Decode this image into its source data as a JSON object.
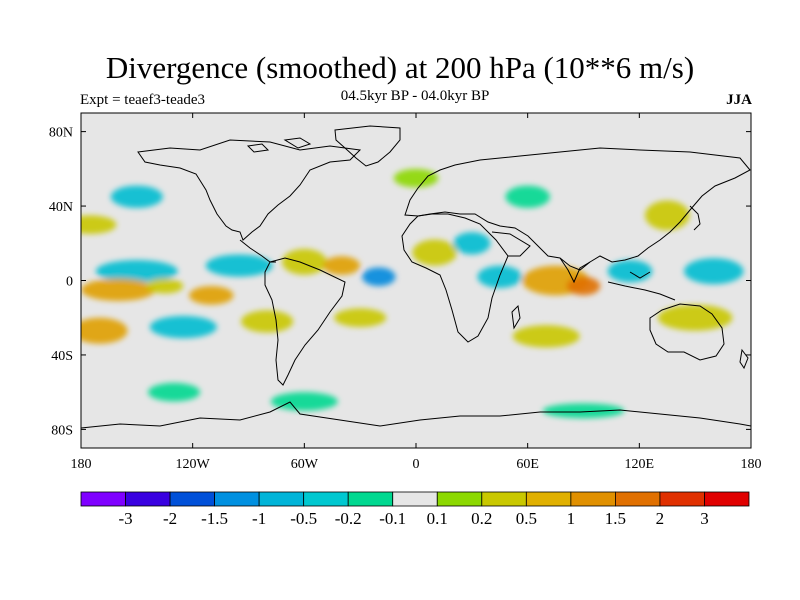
{
  "title": "Divergence (smoothed) at 200 hPa (10**6 m/s)",
  "subtitle_left": "Expt = teaef3-teade3",
  "subtitle_center": "04.5kyr BP - 04.0kyr BP",
  "subtitle_right": "JJA",
  "map": {
    "projection": "cylindrical equidistant",
    "lon_range": [
      -180,
      180
    ],
    "lat_range": [
      -90,
      90
    ],
    "lon_ticks": [
      {
        "value": -180,
        "label": "180"
      },
      {
        "value": -120,
        "label": "120W"
      },
      {
        "value": -60,
        "label": "60W"
      },
      {
        "value": 0,
        "label": "0"
      },
      {
        "value": 60,
        "label": "60E"
      },
      {
        "value": 120,
        "label": "120E"
      },
      {
        "value": 180,
        "label": "180"
      }
    ],
    "lat_ticks": [
      {
        "value": 80,
        "label": "80N"
      },
      {
        "value": 40,
        "label": "40N"
      },
      {
        "value": 0,
        "label": "0"
      },
      {
        "value": -40,
        "label": "40S"
      },
      {
        "value": -80,
        "label": "80S"
      }
    ],
    "background_color": "#e6e6e6",
    "field_blobs": [
      {
        "lon": -150,
        "lat": 5,
        "rlon": 22,
        "rlat": 6,
        "color": "#00bcd0"
      },
      {
        "lon": -95,
        "lat": 8,
        "rlon": 18,
        "rlat": 6,
        "color": "#00bcd0"
      },
      {
        "lon": -60,
        "lat": 10,
        "rlon": 12,
        "rlat": 7,
        "color": "#c9c800"
      },
      {
        "lon": -40,
        "lat": 8,
        "rlon": 10,
        "rlat": 5,
        "color": "#e0a000"
      },
      {
        "lon": -20,
        "lat": 2,
        "rlon": 9,
        "rlat": 5,
        "color": "#0088dd"
      },
      {
        "lon": -160,
        "lat": -5,
        "rlon": 20,
        "rlat": 6,
        "color": "#e0a000"
      },
      {
        "lon": -135,
        "lat": -3,
        "rlon": 10,
        "rlat": 4,
        "color": "#c9c800"
      },
      {
        "lon": -110,
        "lat": -8,
        "rlon": 12,
        "rlat": 5,
        "color": "#e0a000"
      },
      {
        "lon": -170,
        "lat": -27,
        "rlon": 15,
        "rlat": 7,
        "color": "#e0a000"
      },
      {
        "lon": -125,
        "lat": -25,
        "rlon": 18,
        "rlat": 6,
        "color": "#00bcd0"
      },
      {
        "lon": -80,
        "lat": -22,
        "rlon": 14,
        "rlat": 6,
        "color": "#c9c800"
      },
      {
        "lon": -30,
        "lat": -20,
        "rlon": 14,
        "rlat": 5,
        "color": "#c9c800"
      },
      {
        "lon": 10,
        "lat": 15,
        "rlon": 12,
        "rlat": 7,
        "color": "#c9c800"
      },
      {
        "lon": 30,
        "lat": 20,
        "rlon": 10,
        "rlat": 6,
        "color": "#00bcd0"
      },
      {
        "lon": 45,
        "lat": 2,
        "rlon": 12,
        "rlat": 6,
        "color": "#00bcd0"
      },
      {
        "lon": 75,
        "lat": 0,
        "rlon": 18,
        "rlat": 8,
        "color": "#e0a000"
      },
      {
        "lon": 90,
        "lat": -3,
        "rlon": 9,
        "rlat": 5,
        "color": "#e07000"
      },
      {
        "lon": 115,
        "lat": 5,
        "rlon": 12,
        "rlat": 6,
        "color": "#00bcd0"
      },
      {
        "lon": 160,
        "lat": 5,
        "rlon": 16,
        "rlat": 7,
        "color": "#00bcd0"
      },
      {
        "lon": 70,
        "lat": -30,
        "rlon": 18,
        "rlat": 6,
        "color": "#c9c800"
      },
      {
        "lon": 150,
        "lat": -20,
        "rlon": 20,
        "rlat": 7,
        "color": "#c9c800"
      },
      {
        "lon": -175,
        "lat": 30,
        "rlon": 14,
        "rlat": 5,
        "color": "#c9c800"
      },
      {
        "lon": -150,
        "lat": 45,
        "rlon": 14,
        "rlat": 6,
        "color": "#00bcd0"
      },
      {
        "lon": 135,
        "lat": 35,
        "rlon": 12,
        "rlat": 8,
        "color": "#c9c800"
      },
      {
        "lon": -60,
        "lat": -65,
        "rlon": 18,
        "rlat": 5,
        "color": "#00d890"
      },
      {
        "lon": 90,
        "lat": -70,
        "rlon": 22,
        "rlat": 4,
        "color": "#00d890"
      },
      {
        "lon": -130,
        "lat": -60,
        "rlon": 14,
        "rlat": 5,
        "color": "#00d890"
      },
      {
        "lon": 0,
        "lat": 55,
        "rlon": 12,
        "rlat": 5,
        "color": "#8cd800"
      },
      {
        "lon": 60,
        "lat": 45,
        "rlon": 12,
        "rlat": 6,
        "color": "#00d890"
      }
    ]
  },
  "colorbar": {
    "colors": [
      "#7f00ff",
      "#3900e0",
      "#0050d8",
      "#0090e0",
      "#00b4d8",
      "#00c8d0",
      "#00d890",
      "#e6e6e6",
      "#8cd800",
      "#c9c800",
      "#e0b000",
      "#e09000",
      "#e07000",
      "#e03000",
      "#e00000"
    ],
    "labels": [
      "-3",
      "-2",
      "-1.5",
      "-1",
      "-0.5",
      "-0.2",
      "-0.1",
      "0.1",
      "0.2",
      "0.5",
      "1",
      "1.5",
      "2",
      "3"
    ]
  }
}
